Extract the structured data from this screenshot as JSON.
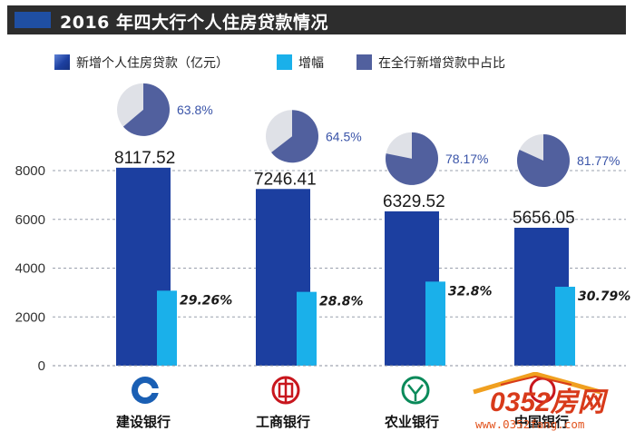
{
  "header": {
    "title": "2016 年四大行个人住房贷款情况"
  },
  "legend": {
    "items": [
      {
        "label": "新增个人住房贷款（亿元）",
        "color": "#1c3fa0"
      },
      {
        "label": "增幅",
        "color": "#1ab0ea"
      },
      {
        "label": "在全行新增贷款中占比",
        "color": "#51609e"
      }
    ]
  },
  "chart_data": {
    "type": "bar",
    "categories": [
      "建设银行",
      "工商银行",
      "农业银行",
      "中国银行"
    ],
    "series": [
      {
        "name": "新增个人住房贷款（亿元）",
        "values": [
          8117.52,
          7246.41,
          6329.52,
          5656.05
        ],
        "color": "#1c3fa0"
      },
      {
        "name": "增幅",
        "values": [
          29.26,
          28.8,
          32.8,
          30.79
        ],
        "color": "#1ab0ea"
      },
      {
        "name": "在全行新增贷款中占比",
        "values": [
          63.8,
          64.5,
          78.17,
          81.77
        ],
        "color": "#51609e"
      }
    ],
    "value_labels": [
      "8117.52",
      "7246.41",
      "6329.52",
      "5656.05"
    ],
    "growth_labels": [
      "29.26%",
      "28.8%",
      "32.8%",
      "30.79%"
    ],
    "share_labels": [
      "63.8%",
      "64.5%",
      "78.17%",
      "81.77%"
    ],
    "yticks": [
      "0",
      "2000",
      "4000",
      "6000",
      "8000"
    ],
    "ylim": [
      0,
      8500
    ],
    "gridlines": "dashed",
    "bank_logos": [
      "ccb-logo",
      "icbc-logo",
      "abc-logo",
      "boc-logo"
    ]
  },
  "watermark": {
    "text": "0352房网",
    "sub": "www.0352fang.com"
  }
}
